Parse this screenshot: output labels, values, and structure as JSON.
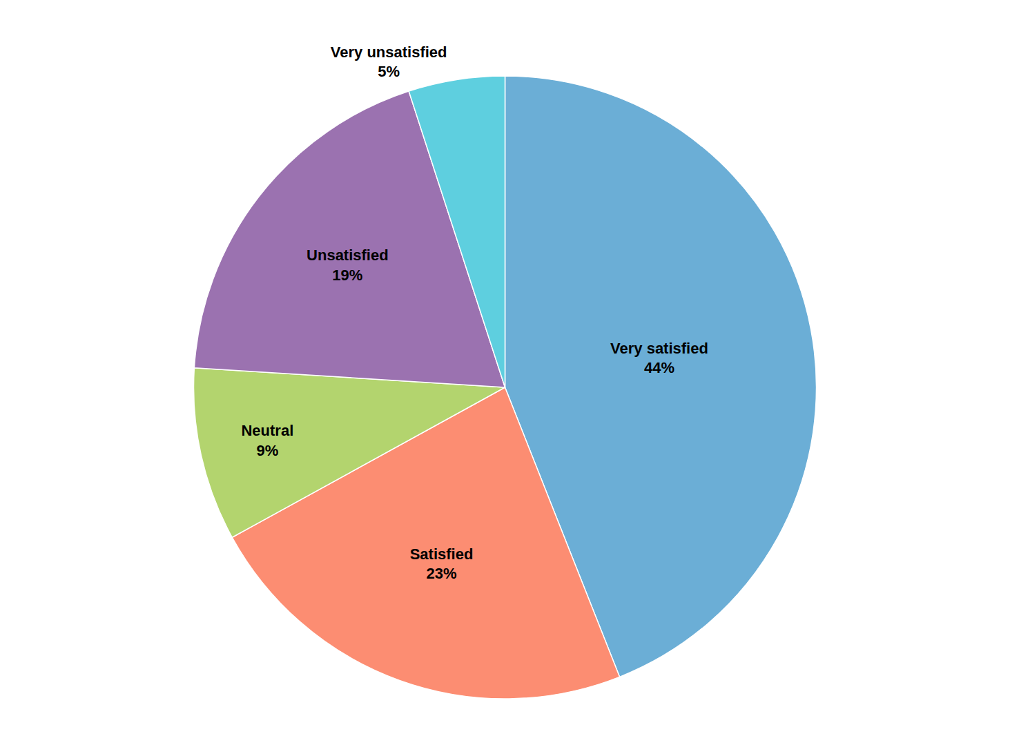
{
  "chart_data": {
    "type": "pie",
    "categories": [
      "Very satisfied",
      "Satisfied",
      "Neutral",
      "Unsatisfied",
      "Very unsatisfied"
    ],
    "values": [
      44,
      23,
      9,
      19,
      5
    ],
    "value_labels": [
      "44%",
      "23%",
      "9%",
      "19%",
      "5%"
    ],
    "colors": [
      "#6baed6",
      "#fc8d72",
      "#b3d46e",
      "#9b72b0",
      "#5ecfdf"
    ],
    "data_labels": true
  }
}
